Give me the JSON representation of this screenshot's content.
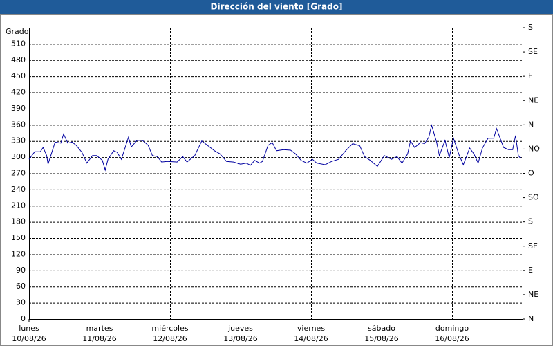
{
  "chart_data": {
    "type": "line",
    "title": "Dirección del viento [Grado]",
    "ylabel": "Grado",
    "x": [
      0,
      0.08,
      0.16,
      0.2,
      0.25,
      0.27,
      0.33,
      0.37,
      0.45,
      0.49,
      0.55,
      0.61,
      0.67,
      0.75,
      0.82,
      0.9,
      0.96,
      1.04,
      1.08,
      1.12,
      1.2,
      1.25,
      1.31,
      1.41,
      1.45,
      1.53,
      1.61,
      1.69,
      1.75,
      1.82,
      1.88,
      1.96,
      2.1,
      2.18,
      2.24,
      2.35,
      2.45,
      2.53,
      2.63,
      2.71,
      2.8,
      2.9,
      3,
      3.08,
      3.14,
      3.2,
      3.27,
      3.31,
      3.39,
      3.45,
      3.51,
      3.61,
      3.71,
      3.78,
      3.86,
      3.94,
      4.02,
      4.08,
      4.2,
      4.29,
      4.39,
      4.49,
      4.59,
      4.69,
      4.76,
      4.84,
      4.94,
      5.04,
      5.14,
      5.22,
      5.29,
      5.37,
      5.41,
      5.47,
      5.55,
      5.61,
      5.67,
      5.71,
      5.78,
      5.82,
      5.9,
      5.96,
      6.02,
      6.1,
      6.16,
      6.25,
      6.31,
      6.37,
      6.43,
      6.51,
      6.59,
      6.63,
      6.73,
      6.8,
      6.86,
      6.9,
      6.94,
      6.97
    ],
    "values": [
      296,
      310,
      310,
      318,
      303,
      287,
      312,
      328,
      326,
      343,
      326,
      328,
      322,
      309,
      289,
      303,
      303,
      294,
      276,
      296,
      312,
      309,
      296,
      337,
      319,
      331,
      331,
      322,
      303,
      301,
      291,
      292,
      291,
      301,
      291,
      303,
      330,
      322,
      312,
      306,
      292,
      291,
      287,
      289,
      285,
      294,
      289,
      292,
      322,
      327,
      312,
      314,
      313,
      306,
      294,
      289,
      296,
      289,
      286,
      292,
      296,
      312,
      325,
      321,
      301,
      294,
      283,
      303,
      296,
      301,
      289,
      306,
      330,
      318,
      327,
      325,
      337,
      359,
      328,
      303,
      331,
      299,
      335,
      304,
      286,
      317,
      306,
      289,
      317,
      335,
      335,
      353,
      318,
      314,
      314,
      340,
      303,
      298
    ],
    "color": "#0000a0",
    "xlim": [
      0,
      7
    ],
    "xticks": [
      {
        "value": 0,
        "label": "10/08/26"
      },
      {
        "value": 1,
        "label": "11/08/26"
      },
      {
        "value": 2,
        "label": "12/08/26"
      },
      {
        "value": 3,
        "label": "13/08/26"
      },
      {
        "value": 4,
        "label": "14/08/26"
      },
      {
        "value": 5,
        "label": "15/08/26"
      },
      {
        "value": 6,
        "label": "16/08/26"
      }
    ],
    "weekdays": [
      "lunes",
      "martes",
      "miércoles",
      "jueves",
      "viernes",
      "sábado",
      "domingo"
    ],
    "ylim": [
      0,
      540
    ],
    "yticks": [
      0,
      30,
      60,
      90,
      120,
      150,
      180,
      210,
      240,
      270,
      300,
      330,
      360,
      390,
      420,
      450,
      480,
      510
    ],
    "y2lim": [
      0,
      540
    ],
    "y2ticks": [
      {
        "value": 0,
        "label": "N"
      },
      {
        "value": 45,
        "label": "NE"
      },
      {
        "value": 90,
        "label": "E"
      },
      {
        "value": 135,
        "label": "SE"
      },
      {
        "value": 180,
        "label": "S"
      },
      {
        "value": 225,
        "label": "SO"
      },
      {
        "value": 270,
        "label": "O"
      },
      {
        "value": 315,
        "label": "NO"
      },
      {
        "value": 360,
        "label": "N"
      },
      {
        "value": 405,
        "label": "NE"
      },
      {
        "value": 450,
        "label": "E"
      },
      {
        "value": 495,
        "label": "SE"
      },
      {
        "value": 540,
        "label": "S"
      }
    ],
    "grid": true
  }
}
